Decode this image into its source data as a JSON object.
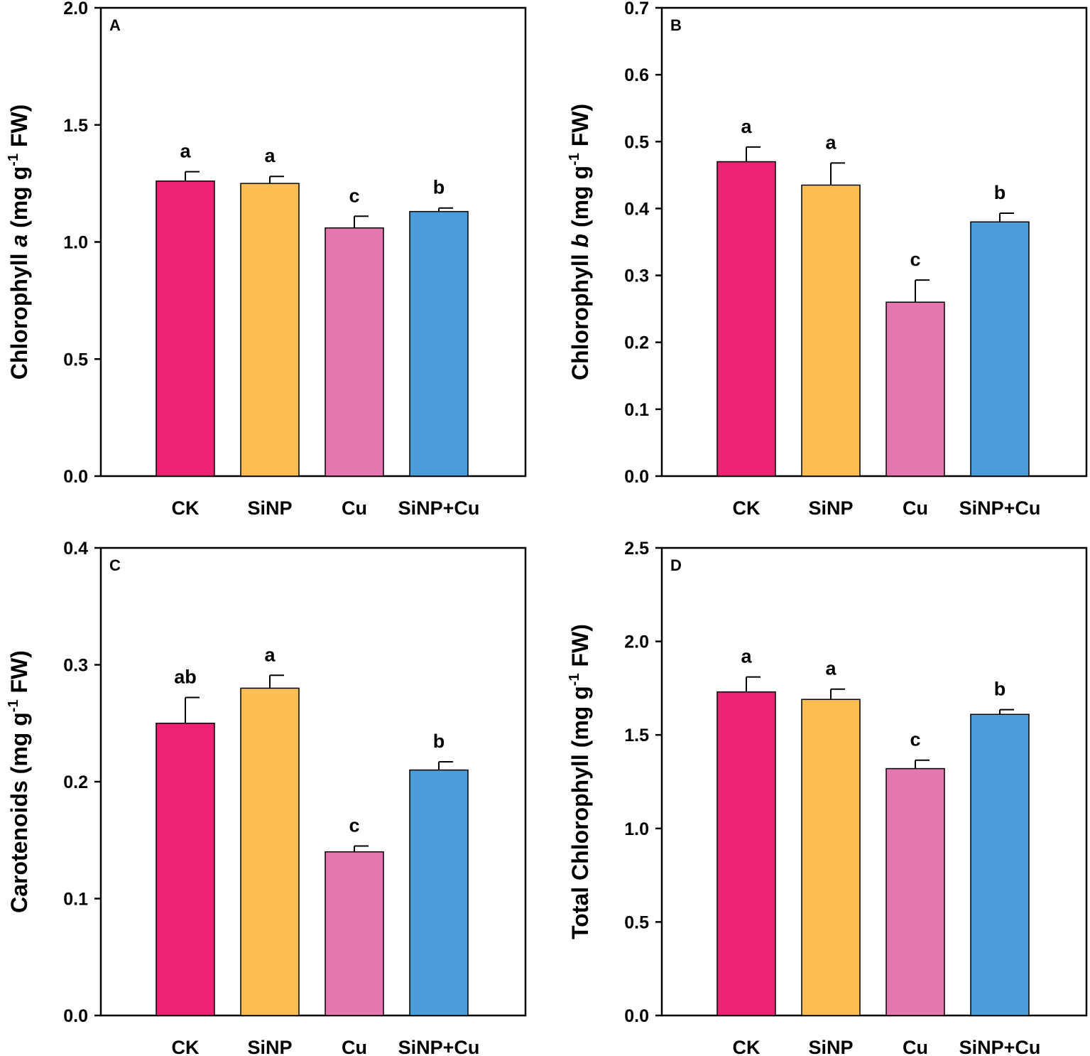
{
  "chart_data": [
    {
      "type": "bar",
      "panel_label": "A",
      "categories": [
        "CK",
        "SiNP",
        "Cu",
        "SiNP+Cu"
      ],
      "values": [
        1.26,
        1.25,
        1.06,
        1.13
      ],
      "errors": [
        0.04,
        0.03,
        0.05,
        0.015
      ],
      "significance": [
        "a",
        "a",
        "c",
        "b"
      ],
      "colors": [
        "#ec2374",
        "#fcbd53",
        "#e477ae",
        "#4a9dd8"
      ],
      "ylabel": {
        "before": "Chlorophyll ",
        "italic": "a",
        "units": " (mg g",
        "sup": "-1",
        "after": " FW)"
      },
      "ylim": [
        0,
        2.0
      ],
      "yticks": [
        "0.0",
        "0.5",
        "1.0",
        "1.5",
        "2.0"
      ],
      "xlabel": ""
    },
    {
      "type": "bar",
      "panel_label": "B",
      "categories": [
        "CK",
        "SiNP",
        "Cu",
        "SiNP+Cu"
      ],
      "values": [
        0.47,
        0.435,
        0.26,
        0.38
      ],
      "errors": [
        0.022,
        0.033,
        0.033,
        0.013
      ],
      "significance": [
        "a",
        "a",
        "c",
        "b"
      ],
      "colors": [
        "#ec2374",
        "#fcbd53",
        "#e477ae",
        "#4a9dd8"
      ],
      "ylabel": {
        "before": "Chlorophyll ",
        "italic": "b",
        "units": " (mg g",
        "sup": "-1",
        "after": " FW)"
      },
      "ylim": [
        0,
        0.7
      ],
      "yticks": [
        "0.0",
        "0.1",
        "0.2",
        "0.3",
        "0.4",
        "0.5",
        "0.6",
        "0.7"
      ],
      "xlabel": ""
    },
    {
      "type": "bar",
      "panel_label": "C",
      "categories": [
        "CK",
        "SiNP",
        "Cu",
        "SiNP+Cu"
      ],
      "values": [
        0.25,
        0.28,
        0.14,
        0.21
      ],
      "errors": [
        0.022,
        0.011,
        0.005,
        0.007
      ],
      "significance": [
        "ab",
        "a",
        "c",
        "b"
      ],
      "colors": [
        "#ec2374",
        "#fcbd53",
        "#e477ae",
        "#4a9dd8"
      ],
      "ylabel": {
        "before": "Carotenoids",
        "italic": "",
        "units": " (mg g",
        "sup": "-1",
        "after": " FW)"
      },
      "ylim": [
        0,
        0.4
      ],
      "yticks": [
        "0.0",
        "0.1",
        "0.2",
        "0.3",
        "0.4"
      ],
      "xlabel": ""
    },
    {
      "type": "bar",
      "panel_label": "D",
      "categories": [
        "CK",
        "SiNP",
        "Cu",
        "SiNP+Cu"
      ],
      "values": [
        1.73,
        1.69,
        1.32,
        1.61
      ],
      "errors": [
        0.08,
        0.055,
        0.045,
        0.025
      ],
      "significance": [
        "a",
        "a",
        "c",
        "b"
      ],
      "colors": [
        "#ec2374",
        "#fcbd53",
        "#e477ae",
        "#4a9dd8"
      ],
      "ylabel": {
        "before": "Total Chlorophyll",
        "italic": "",
        "units": " (mg g",
        "sup": "-1",
        "after": " FW)"
      },
      "ylim": [
        0,
        2.5
      ],
      "yticks": [
        "0.0",
        "0.5",
        "1.0",
        "1.5",
        "2.0",
        "2.5"
      ],
      "xlabel": ""
    }
  ]
}
